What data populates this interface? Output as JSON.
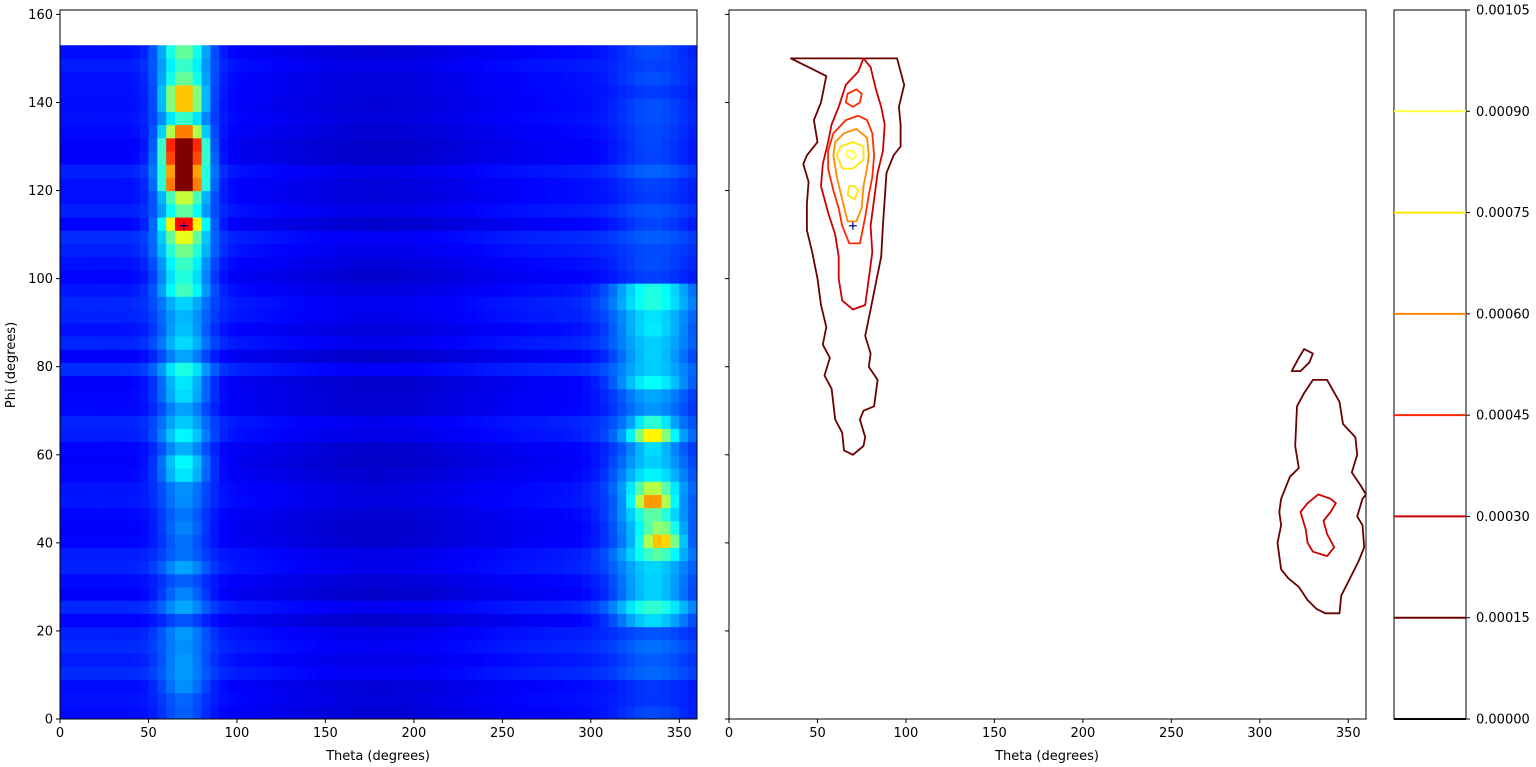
{
  "chart_data": [
    {
      "type": "heatmap",
      "title": "",
      "xlabel": "Theta (degrees)",
      "ylabel": "Phi (degrees)",
      "xlim": [
        0,
        360
      ],
      "ylim": [
        0,
        161
      ],
      "data_extent_y": [
        0,
        153
      ],
      "colormap": "jet",
      "x_ticks": [
        0,
        50,
        100,
        150,
        200,
        250,
        300,
        350
      ],
      "y_ticks": [
        0,
        20,
        40,
        60,
        80,
        100,
        120,
        140,
        160
      ],
      "marker": {
        "x": 70,
        "y": 112,
        "symbol": "+",
        "color": "#00008b"
      },
      "hotspots": [
        {
          "theta": 70,
          "phi": 131,
          "value": 1.0
        },
        {
          "theta": 70,
          "phi": 122,
          "value": 0.85
        },
        {
          "theta": 70,
          "phi": 127,
          "value": 0.7
        },
        {
          "theta": 70,
          "phi": 141,
          "value": 0.55
        },
        {
          "theta": 70,
          "phi": 112,
          "value": 0.5
        },
        {
          "theta": 335,
          "phi": 50,
          "value": 0.5
        },
        {
          "theta": 340,
          "phi": 41,
          "value": 0.45
        },
        {
          "theta": 335,
          "phi": 65,
          "value": 0.35
        }
      ]
    },
    {
      "type": "contour",
      "title": "",
      "xlabel": "Theta (degrees)",
      "ylabel": "",
      "xlim": [
        0,
        360
      ],
      "ylim": [
        0,
        161
      ],
      "x_ticks": [
        0,
        50,
        100,
        150,
        200,
        250,
        300,
        350
      ],
      "marker": {
        "x": 70,
        "y": 112,
        "symbol": "+",
        "color": "#00008b"
      },
      "levels": [
        {
          "value": 0.00015,
          "color": "#6b0000"
        },
        {
          "value": 0.0003,
          "color": "#cc0000"
        },
        {
          "value": 0.00045,
          "color": "#ff2a00"
        },
        {
          "value": 0.0006,
          "color": "#ff8c00"
        },
        {
          "value": 0.00075,
          "color": "#ffe600"
        },
        {
          "value": 0.0009,
          "color": "#ffff40"
        }
      ],
      "contours": [
        {
          "level": 0.00015,
          "points": [
            [
              35,
              150
            ],
            [
              45,
              148
            ],
            [
              55,
              146
            ],
            [
              52,
              140
            ],
            [
              48,
              136
            ],
            [
              50,
              131
            ],
            [
              44,
              128
            ],
            [
              42,
              126
            ],
            [
              45,
              122
            ],
            [
              44,
              117
            ],
            [
              44,
              111
            ],
            [
              47,
              106
            ],
            [
              50,
              100
            ],
            [
              52,
              94
            ],
            [
              55,
              89
            ],
            [
              53,
              85
            ],
            [
              57,
              82
            ],
            [
              54,
              78
            ],
            [
              58,
              75
            ],
            [
              60,
              68
            ],
            [
              64,
              65
            ],
            [
              65,
              61
            ],
            [
              70,
              60
            ],
            [
              76,
              62
            ],
            [
              77,
              64
            ],
            [
              74,
              68
            ],
            [
              76,
              70
            ],
            [
              82,
              71
            ],
            [
              84,
              77
            ],
            [
              79,
              80
            ],
            [
              80,
              83
            ],
            [
              77,
              87
            ],
            [
              80,
              93
            ],
            [
              83,
              99
            ],
            [
              86,
              105
            ],
            [
              87,
              112
            ],
            [
              88,
              118
            ],
            [
              89,
              124
            ],
            [
              93,
              128
            ],
            [
              97,
              130
            ],
            [
              97,
              135
            ],
            [
              96,
              139
            ],
            [
              99,
              144
            ],
            [
              97,
              147
            ],
            [
              95,
              150
            ]
          ]
        },
        {
          "level": 0.00015,
          "points": [
            [
              337,
              24
            ],
            [
              345,
              24
            ],
            [
              346,
              28
            ],
            [
              351,
              32
            ],
            [
              356,
              36
            ],
            [
              359,
              39
            ],
            [
              358,
              44
            ],
            [
              355,
              46
            ],
            [
              358,
              50
            ],
            [
              360,
              51
            ],
            [
              357,
              53
            ],
            [
              352,
              56
            ],
            [
              355,
              60
            ],
            [
              354,
              64
            ],
            [
              347,
              67
            ],
            [
              345,
              72
            ],
            [
              338,
              77
            ],
            [
              330,
              77
            ],
            [
              325,
              74
            ],
            [
              321,
              71
            ],
            [
              320,
              62
            ],
            [
              322,
              57
            ],
            [
              317,
              55
            ],
            [
              312,
              50
            ],
            [
              311,
              47
            ],
            [
              312,
              44
            ],
            [
              310,
              40
            ],
            [
              312,
              34
            ],
            [
              316,
              32
            ],
            [
              322,
              30
            ],
            [
              327,
              27
            ],
            [
              332,
              25
            ]
          ]
        },
        {
          "level": 0.00015,
          "points": [
            [
              318,
              79
            ],
            [
              323,
              79
            ],
            [
              328,
              81
            ],
            [
              330,
              83
            ],
            [
              325,
              84
            ],
            [
              322,
              82
            ]
          ]
        },
        {
          "level": 0.0003,
          "points": [
            [
              330,
              38
            ],
            [
              338,
              37
            ],
            [
              342,
              39
            ],
            [
              338,
              42
            ],
            [
              336,
              45
            ],
            [
              340,
              47
            ],
            [
              343,
              49
            ],
            [
              340,
              50
            ],
            [
              333,
              51
            ],
            [
              327,
              49
            ],
            [
              323,
              47
            ],
            [
              326,
              43
            ],
            [
              327,
              40
            ]
          ]
        },
        {
          "level": 0.0003,
          "points": [
            [
              70,
              93
            ],
            [
              77,
              94
            ],
            [
              79,
              100
            ],
            [
              81,
              106
            ],
            [
              80,
              112
            ],
            [
              82,
              118
            ],
            [
              84,
              124
            ],
            [
              87,
              129
            ],
            [
              88,
              135
            ],
            [
              86,
              139
            ],
            [
              83,
              143
            ],
            [
              80,
              148
            ],
            [
              76,
              150
            ],
            [
              73,
              147
            ],
            [
              66,
              144
            ],
            [
              62,
              139
            ],
            [
              58,
              135
            ],
            [
              56,
              131
            ],
            [
              53,
              126
            ],
            [
              52,
              121
            ],
            [
              56,
              115
            ],
            [
              60,
              110
            ],
            [
              62,
              105
            ],
            [
              62,
              100
            ],
            [
              64,
              95
            ]
          ]
        },
        {
          "level": 0.00045,
          "points": [
            [
              68,
              108
            ],
            [
              74,
              108
            ],
            [
              77,
              114
            ],
            [
              79,
              119
            ],
            [
              81,
              123
            ],
            [
              82,
              128
            ],
            [
              81,
              133
            ],
            [
              78,
              136
            ],
            [
              73,
              137
            ],
            [
              66,
              136
            ],
            [
              59,
              133
            ],
            [
              56,
              129
            ],
            [
              56,
              125
            ],
            [
              59,
              120
            ],
            [
              62,
              116
            ],
            [
              64,
              112
            ]
          ]
        },
        {
          "level": 0.00045,
          "points": [
            [
              66,
              140
            ],
            [
              70,
              139
            ],
            [
              74,
              140
            ],
            [
              75,
              142
            ],
            [
              72,
              143
            ],
            [
              67,
              142
            ]
          ]
        },
        {
          "level": 0.0006,
          "points": [
            [
              67,
              113
            ],
            [
              72,
              113
            ],
            [
              75,
              116
            ],
            [
              76,
              121
            ],
            [
              78,
              125
            ],
            [
              79,
              128
            ],
            [
              78,
              132
            ],
            [
              72,
              134
            ],
            [
              65,
              133
            ],
            [
              60,
              131
            ],
            [
              59,
              128
            ],
            [
              61,
              123
            ],
            [
              64,
              118
            ]
          ]
        },
        {
          "level": 0.00075,
          "points": [
            [
              64,
              125
            ],
            [
              70,
              125
            ],
            [
              76,
              127
            ],
            [
              76,
              130
            ],
            [
              70,
              131
            ],
            [
              63,
              130
            ],
            [
              61,
              128
            ]
          ]
        },
        {
          "level": 0.00075,
          "points": [
            [
              67,
              119
            ],
            [
              71,
              118
            ],
            [
              73,
              120
            ],
            [
              71,
              121
            ],
            [
              68,
              121
            ]
          ]
        },
        {
          "level": 0.0009,
          "points": [
            [
              66,
              128
            ],
            [
              70,
              127
            ],
            [
              72,
              128
            ],
            [
              70,
              129
            ],
            [
              67,
              129
            ]
          ]
        }
      ]
    }
  ],
  "colorbar": {
    "ticks": [
      "0.00000",
      "0.00015",
      "0.00030",
      "0.00045",
      "0.00060",
      "0.00075",
      "0.00090",
      "0.00105"
    ]
  }
}
